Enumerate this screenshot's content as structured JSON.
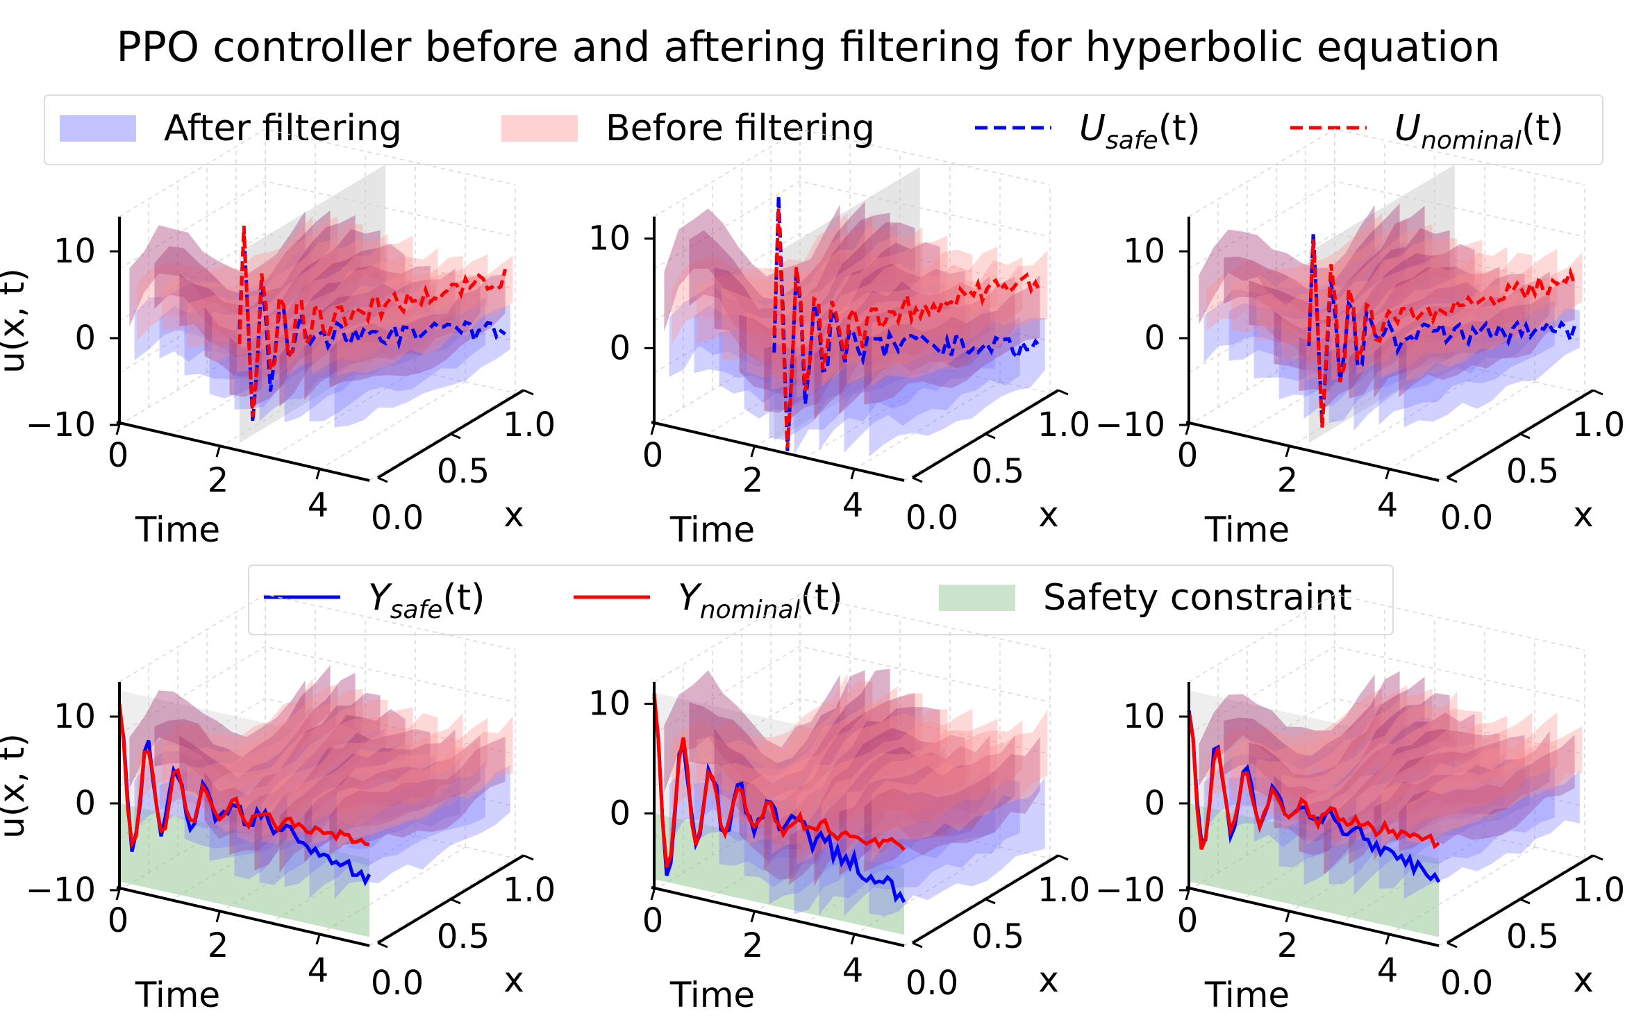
{
  "figure": {
    "title": "PPO controller before and aftering filtering for hyperbolic equation",
    "legend_top": [
      {
        "id": "after",
        "label": "After filtering",
        "kind": "patch",
        "color": "#7b7bff"
      },
      {
        "id": "before",
        "label": "Before filtering",
        "kind": "patch",
        "color": "#ff9a9a"
      },
      {
        "id": "usafe",
        "label_main": "U",
        "label_sub": "safe",
        "label_tail": "(t)",
        "kind": "dashed",
        "color": "#0000ff"
      },
      {
        "id": "unominal",
        "label_main": "U",
        "label_sub": "nominal",
        "label_tail": "(t)",
        "kind": "dashed",
        "color": "#ff0000"
      }
    ],
    "legend_bottom": [
      {
        "id": "ysafe",
        "label_main": "Y",
        "label_sub": "safe",
        "label_tail": "(t)",
        "kind": "solid",
        "color": "#0000ff"
      },
      {
        "id": "ynominal",
        "label_main": "Y",
        "label_sub": "nominal",
        "label_tail": "(t)",
        "kind": "solid",
        "color": "#ff0000"
      },
      {
        "id": "safety",
        "label": "Safety constraint",
        "kind": "patch",
        "color": "#8fc38f"
      }
    ],
    "colors": {
      "after": "#7b7bff",
      "before": "#ff8e8e",
      "overlap": "#a3306e",
      "usafe": "#0000ff",
      "unominal": "#ff0000",
      "safety": "#8fc38f",
      "plane": "#cfcfcf"
    }
  },
  "chart_data": [
    {
      "id": "top-left",
      "type": "surface3d",
      "row": "top",
      "col": 0,
      "zlabel": "u(x, t)",
      "xlabel": "Time",
      "ylabel": "x",
      "xticks": [
        "0",
        "2",
        "4"
      ],
      "yticks": [
        "0.0",
        "0.5",
        "1.0"
      ],
      "zticks": [
        "−10",
        "0",
        "10"
      ],
      "xlim": [
        0,
        5
      ],
      "ylim": [
        0,
        1
      ],
      "zlim": [
        -10,
        14
      ]
    },
    {
      "id": "top-middle",
      "type": "surface3d",
      "row": "top",
      "col": 1,
      "zlabel": "",
      "xlabel": "Time",
      "ylabel": "x",
      "xticks": [
        "0",
        "2",
        "4"
      ],
      "yticks": [
        "0.0",
        "0.5",
        "1.0"
      ],
      "zticks": [
        "0",
        "10"
      ],
      "xlim": [
        0,
        5
      ],
      "ylim": [
        0,
        1
      ],
      "zlim": [
        -7,
        12
      ]
    },
    {
      "id": "top-right",
      "type": "surface3d",
      "row": "top",
      "col": 2,
      "zlabel": "",
      "xlabel": "Time",
      "ylabel": "x",
      "xticks": [
        "0",
        "2",
        "4"
      ],
      "yticks": [
        "0.0",
        "0.5",
        "1.0"
      ],
      "zticks": [
        "−10",
        "0",
        "10"
      ],
      "xlim": [
        0,
        5
      ],
      "ylim": [
        0,
        1
      ],
      "zlim": [
        -10,
        14
      ]
    },
    {
      "id": "bottom-left",
      "type": "surface3d",
      "row": "bottom",
      "col": 0,
      "zlabel": "u(x, t)",
      "xlabel": "Time",
      "ylabel": "x",
      "xticks": [
        "0",
        "2",
        "4"
      ],
      "yticks": [
        "0.0",
        "0.5",
        "1.0"
      ],
      "zticks": [
        "−10",
        "0",
        "10"
      ],
      "xlim": [
        0,
        5
      ],
      "ylim": [
        0,
        1
      ],
      "zlim": [
        -10,
        14
      ]
    },
    {
      "id": "bottom-middle",
      "type": "surface3d",
      "row": "bottom",
      "col": 1,
      "zlabel": "",
      "xlabel": "Time",
      "ylabel": "x",
      "xticks": [
        "0",
        "2",
        "4"
      ],
      "yticks": [
        "0.0",
        "0.5",
        "1.0"
      ],
      "zticks": [
        "0",
        "10"
      ],
      "xlim": [
        0,
        5
      ],
      "ylim": [
        0,
        1
      ],
      "zlim": [
        -7,
        12
      ]
    },
    {
      "id": "bottom-right",
      "type": "surface3d",
      "row": "bottom",
      "col": 2,
      "zlabel": "",
      "xlabel": "Time",
      "ylabel": "x",
      "xticks": [
        "0",
        "2",
        "4"
      ],
      "yticks": [
        "0.0",
        "0.5",
        "1.0"
      ],
      "zticks": [
        "−10",
        "0",
        "10"
      ],
      "xlim": [
        0,
        5
      ],
      "ylim": [
        0,
        1
      ],
      "zlim": [
        -10,
        14
      ]
    }
  ]
}
